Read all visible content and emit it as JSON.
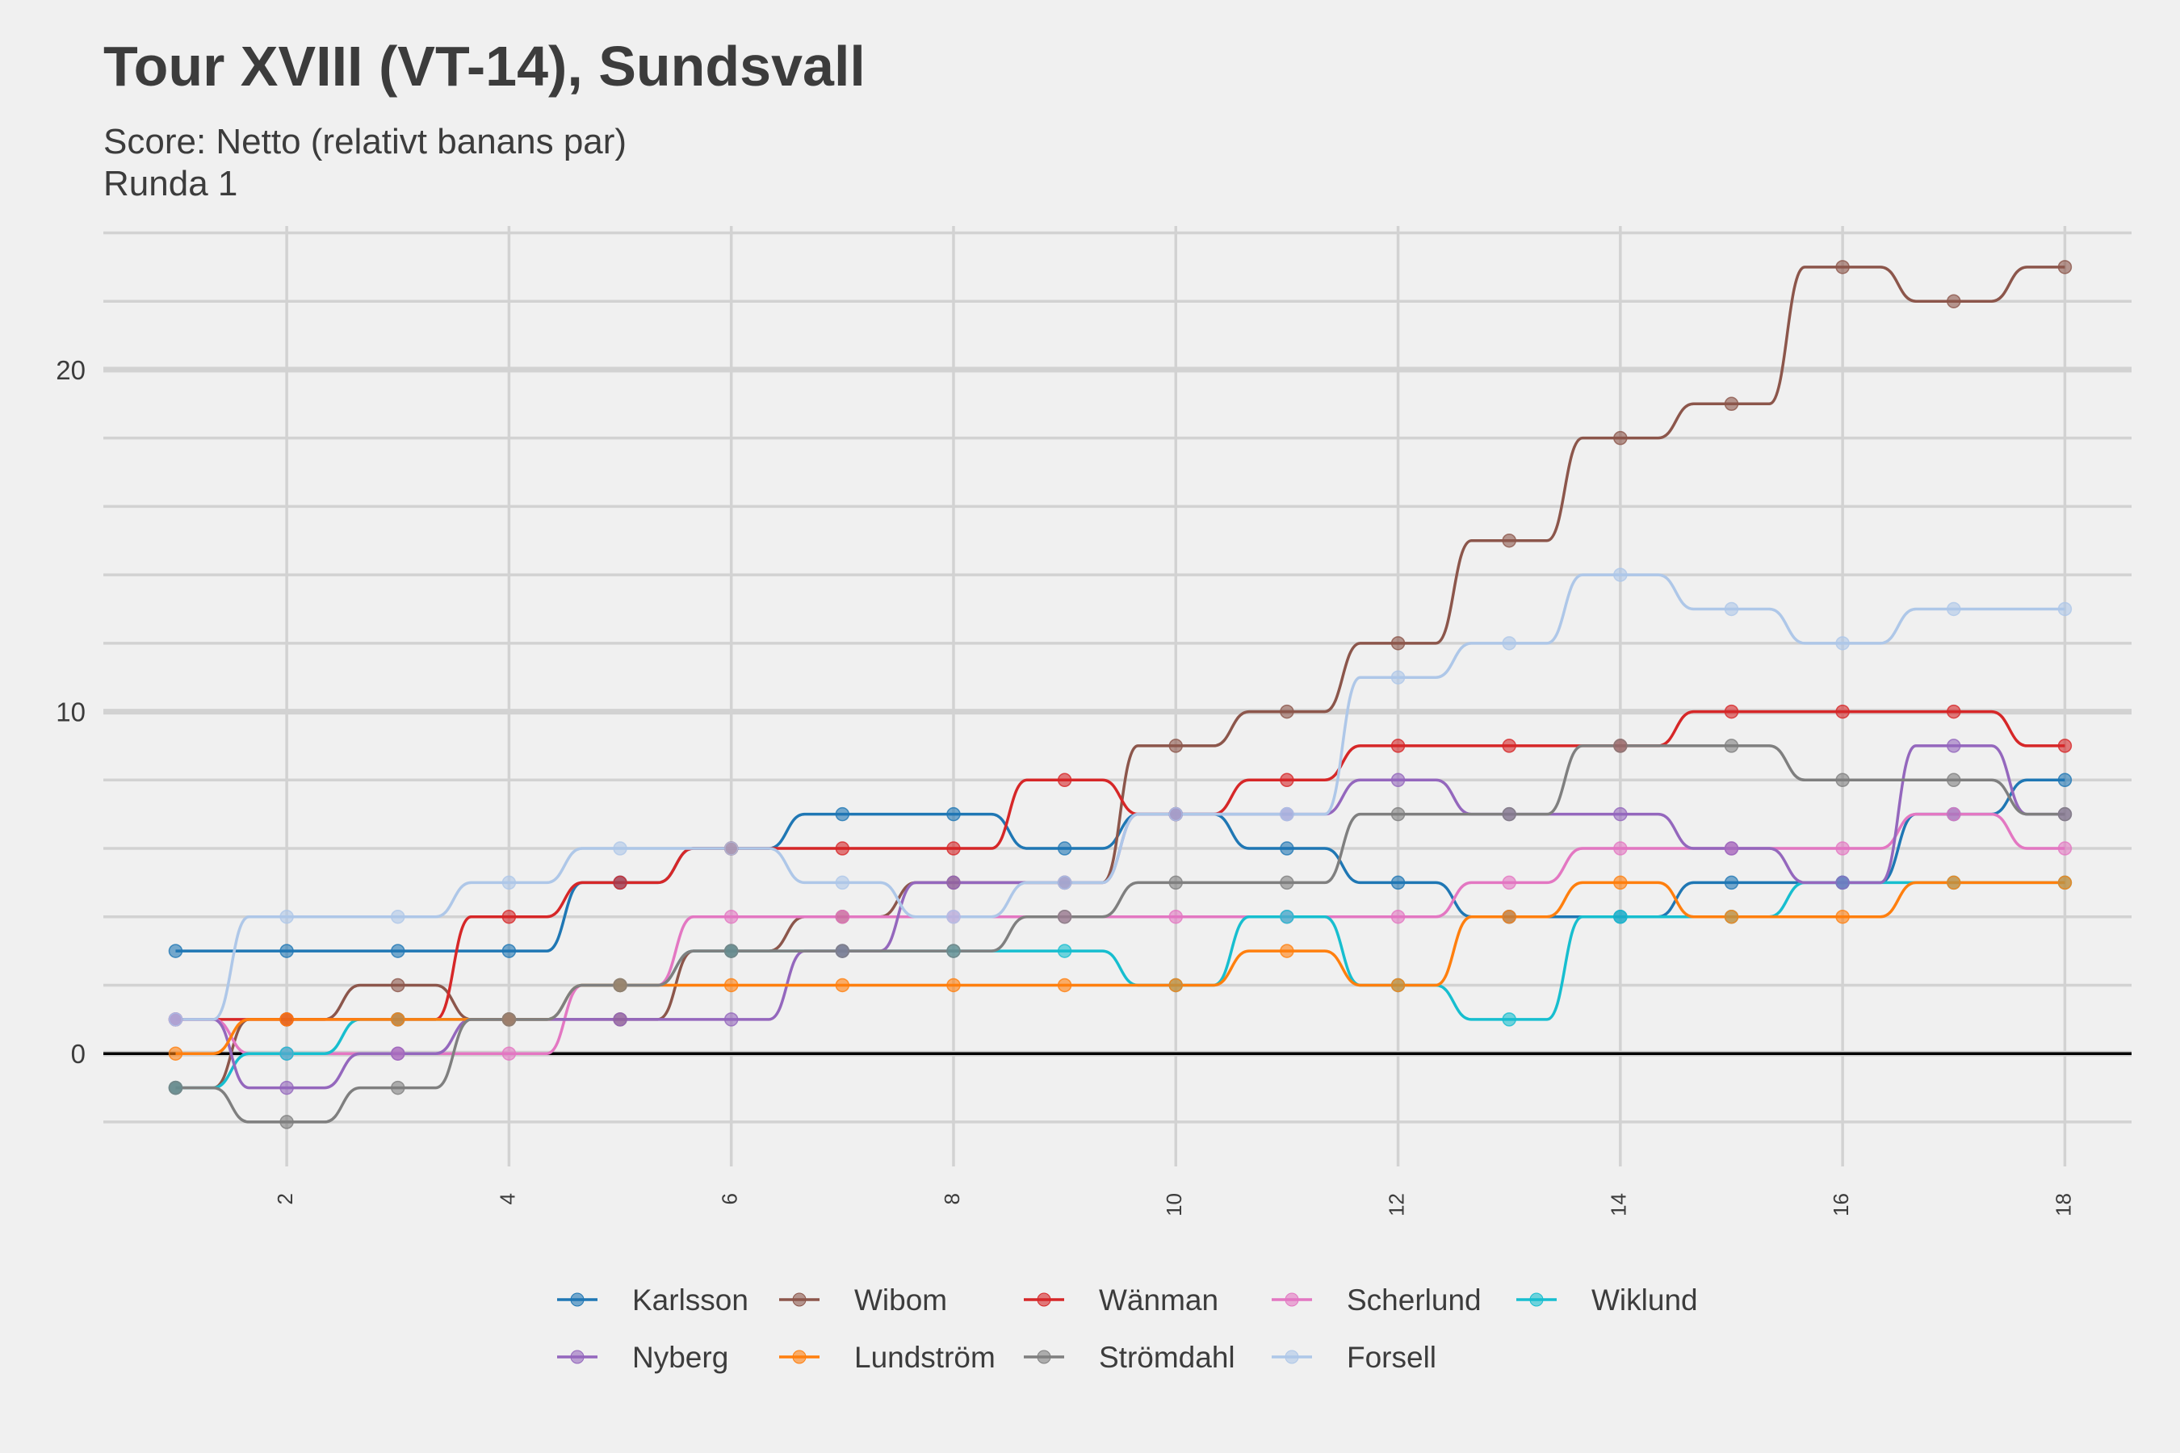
{
  "chart_data": {
    "type": "line",
    "title": "Tour XVIII (VT-14), Sundsvall",
    "subtitle_lines": [
      "Score: Netto (relativt banans par)",
      "Runda 1"
    ],
    "xlabel": "",
    "ylabel": "",
    "x": [
      1,
      2,
      3,
      4,
      5,
      6,
      7,
      8,
      9,
      10,
      11,
      12,
      13,
      14,
      15,
      16,
      17,
      18
    ],
    "x_ticks": [
      2,
      4,
      6,
      8,
      10,
      12,
      14,
      16,
      18
    ],
    "y_ticks": [
      0,
      10,
      20
    ],
    "xlim": [
      0.35,
      18.6
    ],
    "ylim": [
      -3.3,
      24.2
    ],
    "grid": true,
    "legend_position": "bottom",
    "series": [
      {
        "name": "Karlsson",
        "color": "#1f77b4",
        "values": [
          3,
          3,
          3,
          3,
          5,
          6,
          7,
          7,
          6,
          7,
          6,
          5,
          4,
          4,
          5,
          5,
          7,
          8
        ]
      },
      {
        "name": "Wibom",
        "color": "#8c564b",
        "values": [
          -1,
          1,
          2,
          1,
          1,
          3,
          4,
          5,
          5,
          9,
          10,
          12,
          15,
          18,
          19,
          23,
          22,
          23
        ]
      },
      {
        "name": "Wänman",
        "color": "#d62728",
        "values": [
          1,
          1,
          1,
          4,
          5,
          6,
          6,
          6,
          8,
          7,
          8,
          9,
          9,
          9,
          10,
          10,
          10,
          9
        ]
      },
      {
        "name": "Scherlund",
        "color": "#e377c2",
        "values": [
          1,
          0,
          0,
          0,
          2,
          4,
          4,
          4,
          4,
          4,
          4,
          4,
          5,
          6,
          6,
          6,
          7,
          6
        ]
      },
      {
        "name": "Wiklund",
        "color": "#17becf",
        "values": [
          -1,
          0,
          1,
          1,
          2,
          3,
          3,
          3,
          3,
          2,
          4,
          2,
          1,
          4,
          4,
          5,
          5,
          5
        ]
      },
      {
        "name": "Nyberg",
        "color": "#9467bd",
        "values": [
          1,
          -1,
          0,
          1,
          1,
          1,
          3,
          5,
          5,
          7,
          7,
          8,
          7,
          7,
          6,
          5,
          9,
          7
        ]
      },
      {
        "name": "Lundström",
        "color": "#ff7f0e",
        "values": [
          0,
          1,
          1,
          1,
          2,
          2,
          2,
          2,
          2,
          2,
          3,
          2,
          4,
          5,
          4,
          4,
          5,
          5
        ]
      },
      {
        "name": "Strömdahl",
        "color": "#7f7f7f",
        "values": [
          -1,
          -2,
          -1,
          1,
          2,
          3,
          3,
          3,
          4,
          5,
          5,
          7,
          7,
          9,
          9,
          8,
          8,
          7
        ]
      },
      {
        "name": "Forsell",
        "color": "#aec7e8",
        "values": [
          1,
          4,
          4,
          5,
          6,
          6,
          5,
          4,
          5,
          7,
          7,
          11,
          12,
          14,
          13,
          12,
          13,
          13
        ]
      }
    ]
  }
}
